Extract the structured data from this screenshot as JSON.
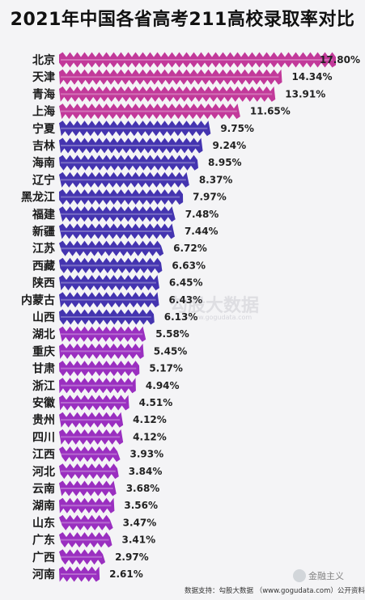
{
  "chart_data": {
    "type": "bar",
    "title": "2021年中国各省高考211高校录取率对比",
    "categories": [
      "北京",
      "天津",
      "青海",
      "上海",
      "宁夏",
      "吉林",
      "海南",
      "辽宁",
      "黑龙江",
      "福建",
      "新疆",
      "江苏",
      "西藏",
      "陕西",
      "内蒙古",
      "山西",
      "湖北",
      "重庆",
      "甘肃",
      "浙江",
      "安徽",
      "贵州",
      "四川",
      "江西",
      "河北",
      "云南",
      "湖南",
      "山东",
      "广东",
      "广西",
      "河南"
    ],
    "values": [
      17.8,
      14.34,
      13.91,
      11.65,
      9.75,
      9.24,
      8.95,
      8.37,
      7.97,
      7.48,
      7.44,
      6.72,
      6.63,
      6.45,
      6.43,
      6.13,
      5.58,
      5.45,
      5.17,
      4.94,
      4.51,
      4.12,
      4.12,
      3.93,
      3.84,
      3.68,
      3.56,
      3.47,
      3.41,
      2.97,
      2.61
    ],
    "value_labels": [
      "17.80%",
      "14.34%",
      "13.91%",
      "11.65%",
      "9.75%",
      "9.24%",
      "8.95%",
      "8.37%",
      "7.97%",
      "7.48%",
      "7.44%",
      "6.72%",
      "6.63%",
      "6.45%",
      "6.43%",
      "6.13%",
      "5.58%",
      "5.45%",
      "5.17%",
      "4.94%",
      "4.51%",
      "4.12%",
      "4.12%",
      "3.93%",
      "3.84%",
      "3.68%",
      "3.56%",
      "3.47%",
      "3.41%",
      "2.97%",
      "2.61%"
    ],
    "orientation": "horizontal",
    "bar_style": "zigzag",
    "color_groups": [
      {
        "color": "#c2399a",
        "from": 0,
        "to": 3
      },
      {
        "color": "#4434b0",
        "from": 4,
        "to": 15
      },
      {
        "color": "#9a2fc0",
        "from": 16,
        "to": 30
      }
    ]
  },
  "footer": {
    "source": "数据支持：勾股大数据 （www.gogudata.com）公开资料整理"
  },
  "watermarks": {
    "center": "勾股大数据",
    "center_sub": "www.gogudata.com",
    "badge": "金融主义"
  }
}
